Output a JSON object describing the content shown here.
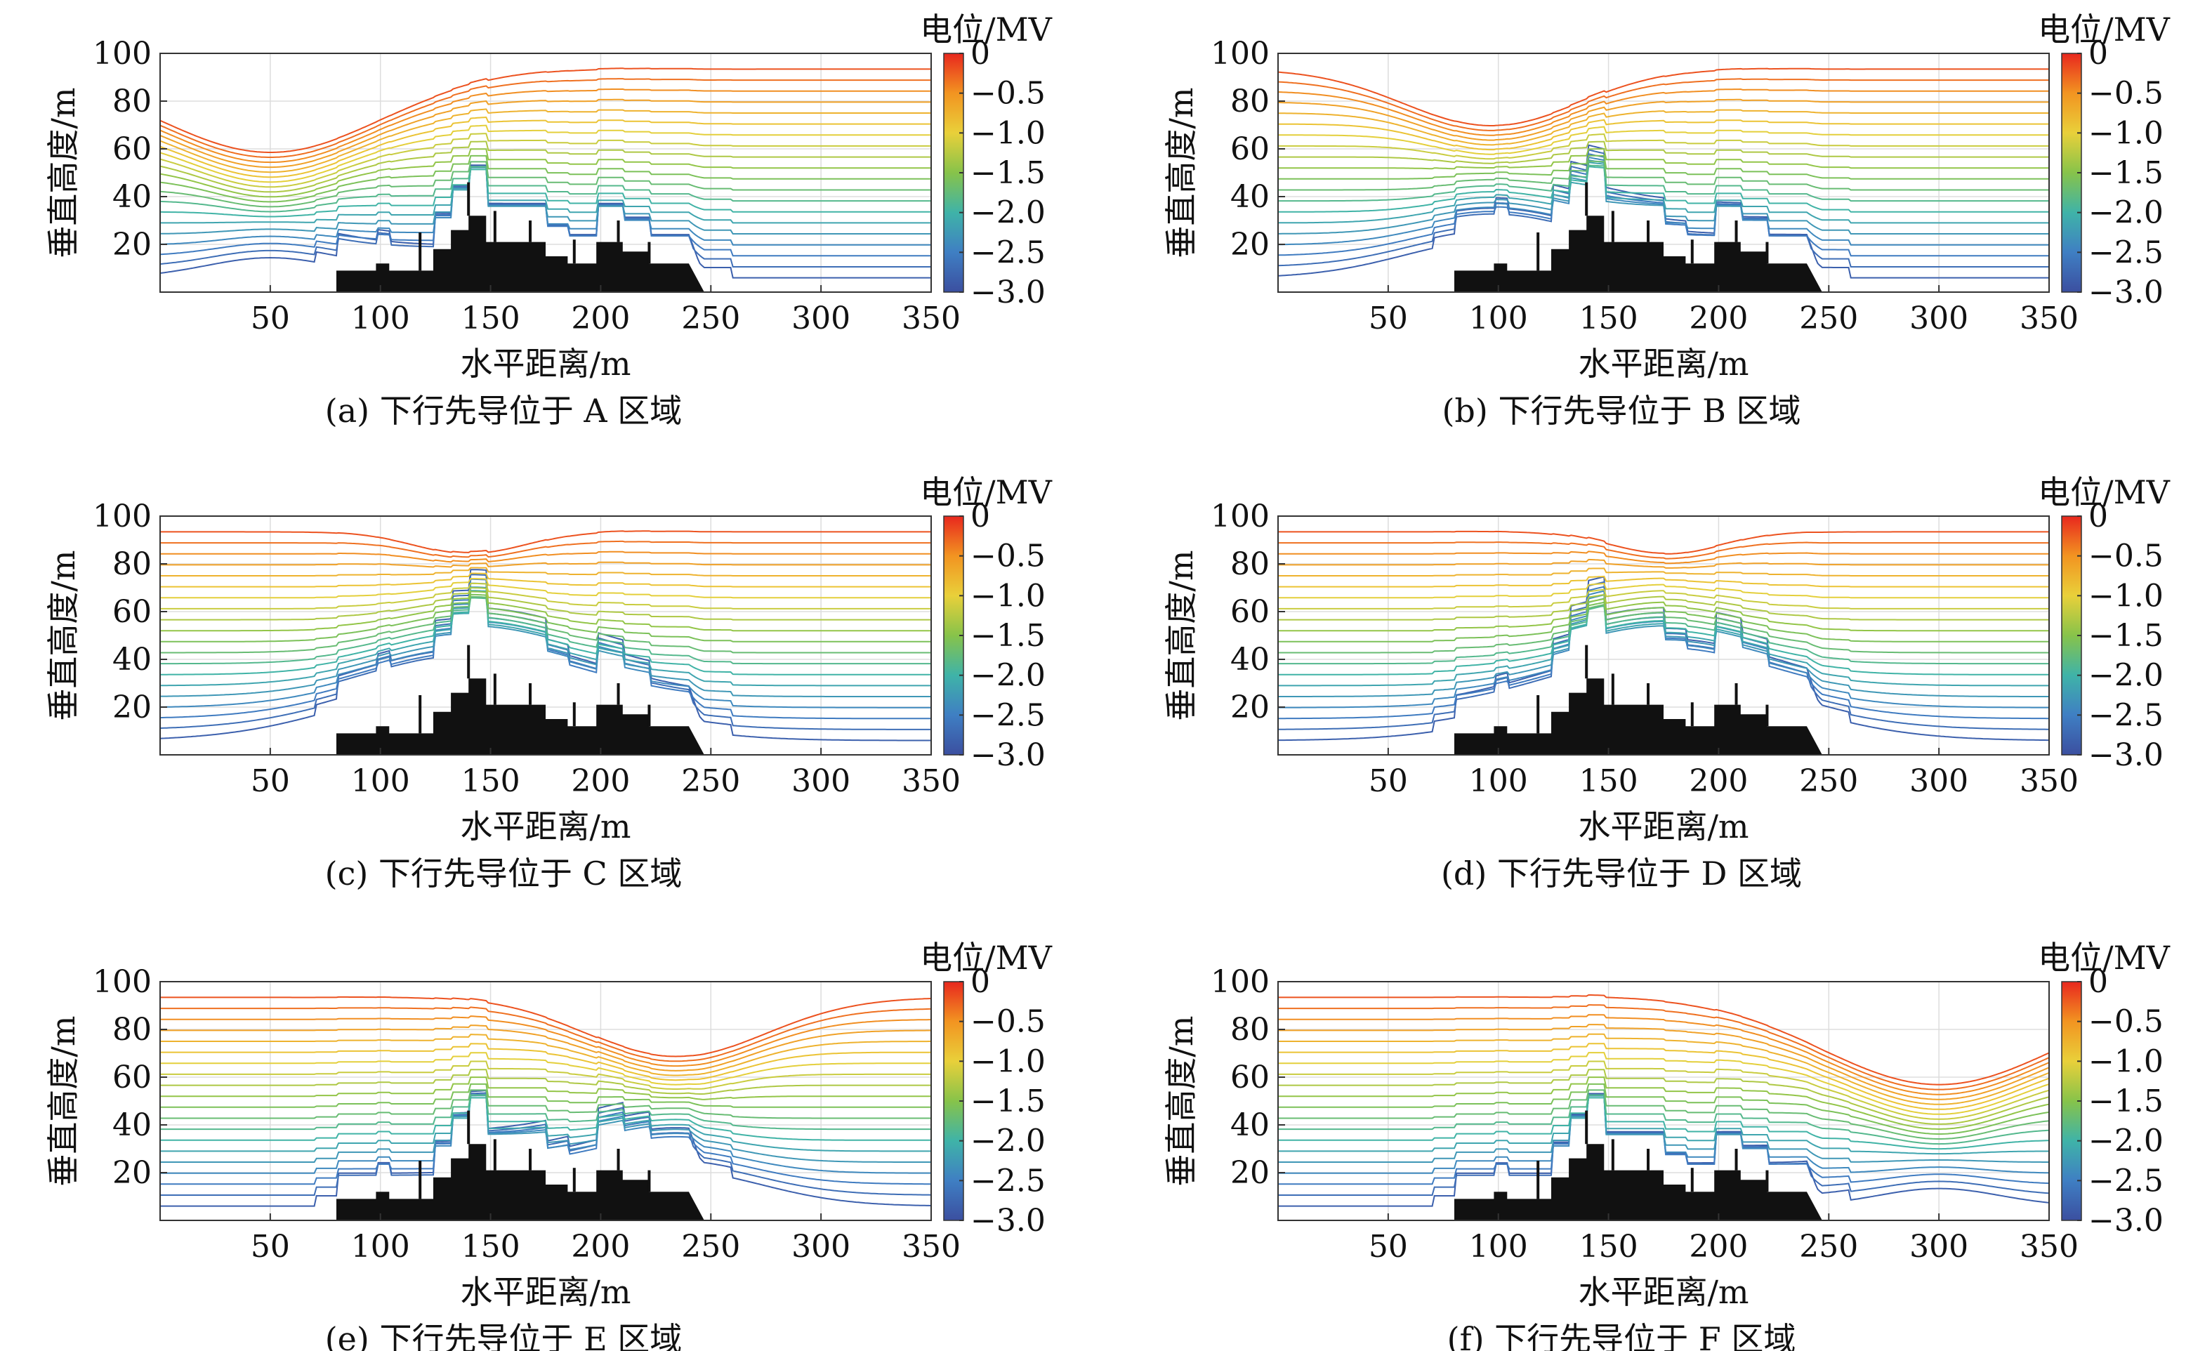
{
  "chart_data": [
    {
      "type": "contour",
      "caption": "(a) 下行先导位于 A 区域",
      "xlabel": "水平距离/m",
      "ylabel": "垂直高度/m",
      "xlim": [
        0,
        350
      ],
      "ylim": [
        0,
        100
      ],
      "xticks": [
        50,
        100,
        150,
        200,
        250,
        300,
        350
      ],
      "yticks": [
        20,
        40,
        60,
        80,
        100
      ],
      "leader_tip": {
        "x": 50,
        "y": 30
      },
      "colorbar": {
        "label": "电位/MV",
        "ticks": [
          0,
          -0.5,
          -1.0,
          -1.5,
          -2.0,
          -2.5,
          -3.0
        ],
        "tick_labels": [
          "0",
          "−0.5",
          "−1.0",
          "−1.5",
          "−2.0",
          "−2.5",
          "−3.0"
        ],
        "range": [
          -3.0,
          0
        ]
      }
    },
    {
      "type": "contour",
      "caption": "(b) 下行先导位于 B 区域",
      "xlabel": "水平距离/m",
      "ylabel": "垂直高度/m",
      "xlim": [
        0,
        350
      ],
      "ylim": [
        0,
        100
      ],
      "xticks": [
        50,
        100,
        150,
        200,
        250,
        300,
        350
      ],
      "yticks": [
        20,
        40,
        60,
        80,
        100
      ],
      "leader_tip": {
        "x": 97,
        "y": 50
      },
      "colorbar": {
        "label": "电位/MV",
        "ticks": [
          0,
          -0.5,
          -1.0,
          -1.5,
          -2.0,
          -2.5,
          -3.0
        ],
        "tick_labels": [
          "0",
          "−0.5",
          "−1.0",
          "−1.5",
          "−2.0",
          "−2.5",
          "−3.0"
        ],
        "range": [
          -3.0,
          0
        ]
      }
    },
    {
      "type": "contour",
      "caption": "(c) 下行先导位于 C 区域",
      "xlabel": "水平距离/m",
      "ylabel": "垂直高度/m",
      "xlim": [
        0,
        350
      ],
      "ylim": [
        0,
        100
      ],
      "xticks": [
        50,
        100,
        150,
        200,
        250,
        300,
        350
      ],
      "yticks": [
        20,
        40,
        60,
        80,
        100
      ],
      "leader_tip": {
        "x": 141,
        "y": 76
      },
      "colorbar": {
        "label": "电位/MV",
        "ticks": [
          0,
          -0.5,
          -1.0,
          -1.5,
          -2.0,
          -2.5,
          -3.0
        ],
        "tick_labels": [
          "0",
          "−0.5",
          "−1.0",
          "−1.5",
          "−2.0",
          "−2.5",
          "−3.0"
        ],
        "range": [
          -3.0,
          0
        ]
      }
    },
    {
      "type": "contour",
      "caption": "(d) 下行先导位于 D 区域",
      "xlabel": "水平距离/m",
      "ylabel": "垂直高度/m",
      "xlim": [
        0,
        350
      ],
      "ylim": [
        0,
        100
      ],
      "xticks": [
        50,
        100,
        150,
        200,
        250,
        300,
        350
      ],
      "yticks": [
        20,
        40,
        60,
        80,
        100
      ],
      "leader_tip": {
        "x": 176,
        "y": 76
      },
      "colorbar": {
        "label": "电位/MV",
        "ticks": [
          0,
          -0.5,
          -1.0,
          -1.5,
          -2.0,
          -2.5,
          -3.0
        ],
        "tick_labels": [
          "0",
          "−0.5",
          "−1.0",
          "−1.5",
          "−2.0",
          "−2.5",
          "−3.0"
        ],
        "range": [
          -3.0,
          0
        ]
      }
    },
    {
      "type": "contour",
      "caption": "(e) 下行先导位于 E 区域",
      "xlabel": "水平距离/m",
      "ylabel": "垂直高度/m",
      "xlim": [
        0,
        350
      ],
      "ylim": [
        0,
        100
      ],
      "xticks": [
        50,
        100,
        150,
        200,
        250,
        300,
        350
      ],
      "yticks": [
        20,
        40,
        60,
        80,
        100
      ],
      "leader_tip": {
        "x": 234,
        "y": 48
      },
      "colorbar": {
        "label": "电位/MV",
        "ticks": [
          0,
          -0.5,
          -1.0,
          -1.5,
          -2.0,
          -2.5,
          -3.0
        ],
        "tick_labels": [
          "0",
          "−0.5",
          "−1.0",
          "−1.5",
          "−2.0",
          "−2.5",
          "−3.0"
        ],
        "range": [
          -3.0,
          0
        ]
      }
    },
    {
      "type": "contour",
      "caption": "(f) 下行先导位于 F 区域",
      "xlabel": "水平距离/m",
      "ylabel": "垂直高度/m",
      "xlim": [
        0,
        350
      ],
      "ylim": [
        0,
        100
      ],
      "xticks": [
        50,
        100,
        150,
        200,
        250,
        300,
        350
      ],
      "yticks": [
        20,
        40,
        60,
        80,
        100
      ],
      "leader_tip": {
        "x": 300,
        "y": 27
      },
      "colorbar": {
        "label": "电位/MV",
        "ticks": [
          0,
          -0.5,
          -1.0,
          -1.5,
          -2.0,
          -2.5,
          -3.0
        ],
        "tick_labels": [
          "0",
          "−0.5",
          "−1.0",
          "−1.5",
          "−2.0",
          "−2.5",
          "−3.0"
        ],
        "range": [
          -3.0,
          0
        ]
      }
    }
  ],
  "ship_profile": [
    [
      73,
      0
    ],
    [
      80,
      0
    ],
    [
      80,
      9
    ],
    [
      98,
      9
    ],
    [
      98,
      12
    ],
    [
      104,
      12
    ],
    [
      104,
      9
    ],
    [
      124,
      9
    ],
    [
      124,
      18
    ],
    [
      132,
      18
    ],
    [
      132,
      26
    ],
    [
      140,
      26
    ],
    [
      140,
      32
    ],
    [
      148,
      32
    ],
    [
      148,
      21
    ],
    [
      175,
      21
    ],
    [
      175,
      15
    ],
    [
      185,
      15
    ],
    [
      185,
      12
    ],
    [
      198,
      12
    ],
    [
      198,
      21
    ],
    [
      210,
      21
    ],
    [
      210,
      17
    ],
    [
      222,
      17
    ],
    [
      222,
      12
    ],
    [
      240,
      12
    ],
    [
      247,
      0
    ]
  ],
  "ship_masts": [
    [
      118,
      9,
      25
    ],
    [
      140,
      32,
      46
    ],
    [
      152,
      21,
      34
    ],
    [
      168,
      21,
      30
    ],
    [
      188,
      12,
      22
    ],
    [
      208,
      21,
      30
    ],
    [
      222,
      12,
      21
    ]
  ],
  "colormap": [
    "#e8271e",
    "#f29421",
    "#e9d03a",
    "#87c34a",
    "#3fb3a8",
    "#3f7fc3",
    "#3b4fa0"
  ]
}
